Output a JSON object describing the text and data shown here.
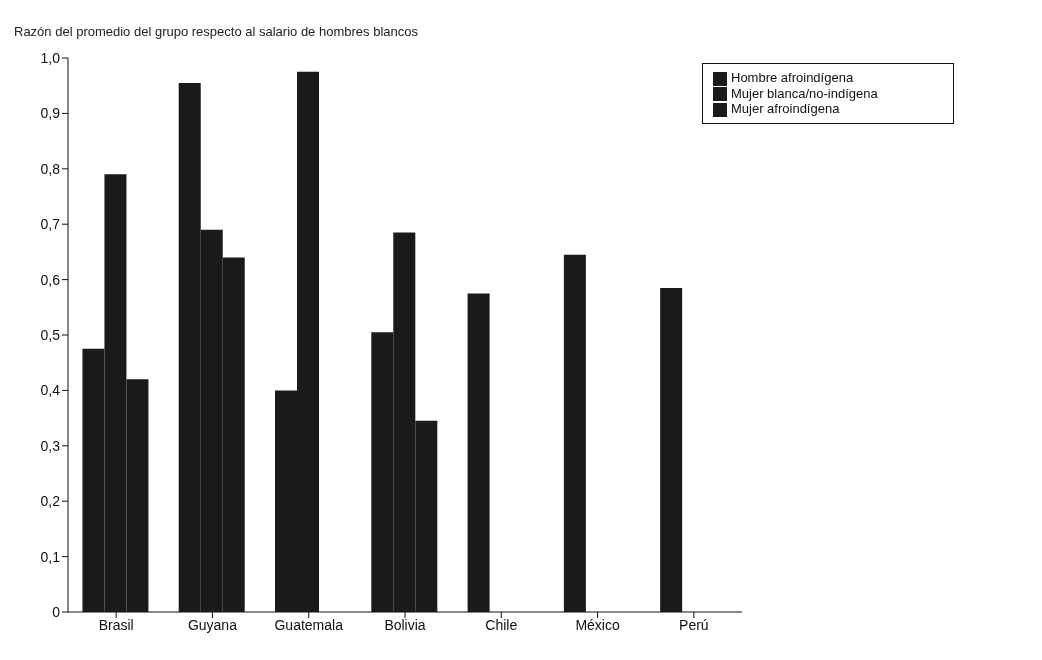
{
  "chart_data": {
    "type": "bar",
    "ylabel": "Razón del promedio del grupo respecto al salario de hombres blancos",
    "categories": [
      "Brasil",
      "Guyana",
      "Guatemala",
      "Bolivia",
      "Chile",
      "México",
      "Perú"
    ],
    "series": [
      {
        "name": "Hombre afroindígena",
        "color": "#1a1a1a",
        "values": [
          0.475,
          0.955,
          0.4,
          0.505,
          0.575,
          0.645,
          0.585
        ]
      },
      {
        "name": "Mujer blanca/no-indígena",
        "color": "#1a1a1a",
        "values": [
          0.79,
          0.69,
          0.975,
          0.685,
          null,
          null,
          null
        ]
      },
      {
        "name": "Mujer afroindígena",
        "color": "#1a1a1a",
        "values": [
          0.42,
          0.64,
          null,
          0.345,
          null,
          null,
          null
        ]
      }
    ],
    "ylim": [
      0,
      1
    ],
    "yticks": [
      {
        "value": 0,
        "label": "0"
      },
      {
        "value": 0.1,
        "label": "0,1"
      },
      {
        "value": 0.2,
        "label": "0,2"
      },
      {
        "value": 0.3,
        "label": "0,3"
      },
      {
        "value": 0.4,
        "label": "0,4"
      },
      {
        "value": 0.5,
        "label": "0,5"
      },
      {
        "value": 0.6,
        "label": "0,6"
      },
      {
        "value": 0.7,
        "label": "0,7"
      },
      {
        "value": 0.8,
        "label": "0,8"
      },
      {
        "value": 0.9,
        "label": "0,9"
      },
      {
        "value": 1,
        "label": "1,0"
      }
    ],
    "grid": false,
    "legend": "top right"
  }
}
